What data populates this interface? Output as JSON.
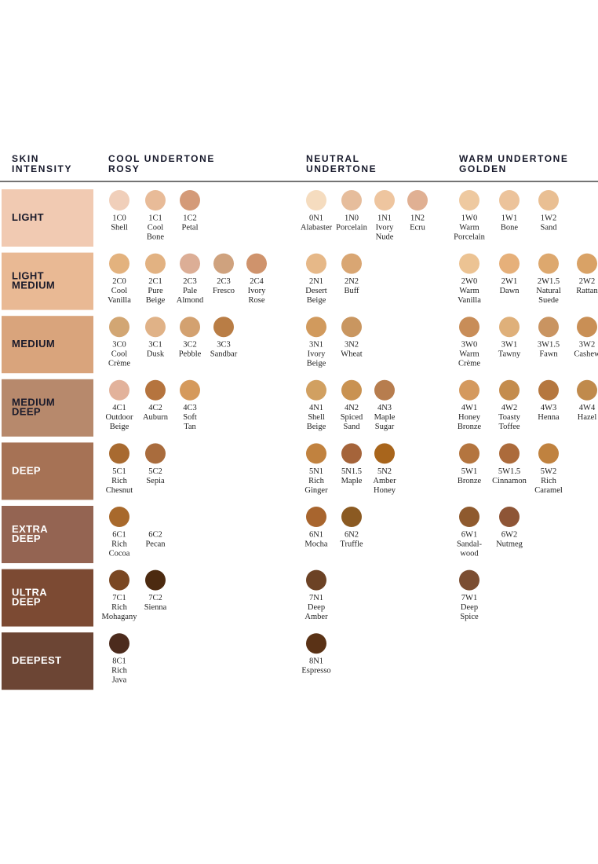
{
  "headers": [
    [
      "SKIN",
      "INTENSITY"
    ],
    [
      "COOL UNDERTONE",
      "ROSY"
    ],
    [
      "NEUTRAL",
      "UNDERTONE"
    ],
    [
      "WARM UNDERTONE",
      "GOLDEN"
    ]
  ],
  "rows": [
    {
      "label": [
        "LIGHT"
      ],
      "box": "#f1cab2",
      "cool": [
        {
          "code": "1C0",
          "name": [
            "Shell"
          ],
          "color": "#f0cfba"
        },
        {
          "code": "1C1",
          "name": [
            "Cool",
            "Bone"
          ],
          "color": "#e8bb98"
        },
        {
          "code": "1C2",
          "name": [
            "Petal"
          ],
          "color": "#d49a78"
        }
      ],
      "neutral": [
        {
          "code": "0N1",
          "name": [
            "Alabaster"
          ],
          "color": "#f5dcbf"
        },
        {
          "code": "1N0",
          "name": [
            "Porcelain"
          ],
          "color": "#e6bd9c"
        },
        {
          "code": "1N1",
          "name": [
            "Ivory",
            "Nude"
          ],
          "color": "#eec59f"
        },
        {
          "code": "1N2",
          "name": [
            "Ecru"
          ],
          "color": "#e0b093"
        }
      ],
      "warm": [
        {
          "code": "1W0",
          "name": [
            "Warm",
            "Porcelain"
          ],
          "color": "#eec9a0"
        },
        {
          "code": "1W1",
          "name": [
            "Bone"
          ],
          "color": "#ecc39b"
        },
        {
          "code": "1W2",
          "name": [
            "Sand"
          ],
          "color": "#e9bf93"
        }
      ]
    },
    {
      "label": [
        "LIGHT",
        "MEDIUM"
      ],
      "box": "#e9b994",
      "cool": [
        {
          "code": "2C0",
          "name": [
            "Cool",
            "Vanilla"
          ],
          "color": "#e3b27e"
        },
        {
          "code": "2C1",
          "name": [
            "Pure",
            "Beige"
          ],
          "color": "#e2b282"
        },
        {
          "code": "2C3",
          "name": [
            "Pale",
            "Almond"
          ],
          "color": "#dcae96"
        },
        {
          "code": "2C3",
          "name": [
            "Fresco"
          ],
          "color": "#cfa27e"
        },
        {
          "code": "2C4",
          "name": [
            "Ivory",
            "Rose"
          ],
          "color": "#cf936c"
        }
      ],
      "neutral": [
        {
          "code": "2N1",
          "name": [
            "Desert",
            "Beige"
          ],
          "color": "#e6b888"
        },
        {
          "code": "2N2",
          "name": [
            "Buff"
          ],
          "color": "#d9a673"
        }
      ],
      "warm": [
        {
          "code": "2W0",
          "name": [
            "Warm",
            "Vanilla"
          ],
          "color": "#ecc393"
        },
        {
          "code": "2W1",
          "name": [
            "Dawn"
          ],
          "color": "#e6b07a"
        },
        {
          "code": "2W1.5",
          "name": [
            "Natural",
            "Suede"
          ],
          "color": "#dda86e"
        },
        {
          "code": "2W2",
          "name": [
            "Rattan"
          ],
          "color": "#d9a266"
        }
      ]
    },
    {
      "label": [
        "MEDIUM"
      ],
      "box": "#d9a47c",
      "cool": [
        {
          "code": "3C0",
          "name": [
            "Cool",
            "Crème"
          ],
          "color": "#d2a673"
        },
        {
          "code": "3C1",
          "name": [
            "Dusk"
          ],
          "color": "#e0b287"
        },
        {
          "code": "3C2",
          "name": [
            "Pebble"
          ],
          "color": "#d3a170"
        },
        {
          "code": "3C3",
          "name": [
            "Sandbar"
          ],
          "color": "#b97d45"
        }
      ],
      "neutral": [
        {
          "code": "3N1",
          "name": [
            "Ivory",
            "Beige"
          ],
          "color": "#d19a5d"
        },
        {
          "code": "3N2",
          "name": [
            "Wheat"
          ],
          "color": "#c99660"
        }
      ],
      "warm": [
        {
          "code": "3W0",
          "name": [
            "Warm",
            "Crème"
          ],
          "color": "#c88d58"
        },
        {
          "code": "3W1",
          "name": [
            "Tawny"
          ],
          "color": "#dfb07a"
        },
        {
          "code": "3W1.5",
          "name": [
            "Fawn"
          ],
          "color": "#c99461"
        },
        {
          "code": "3W2",
          "name": [
            "Cashew"
          ],
          "color": "#c98f55"
        }
      ]
    },
    {
      "label": [
        "MEDIUM",
        "DEEP"
      ],
      "box": "#b7896c",
      "cool": [
        {
          "code": "4C1",
          "name": [
            "Outdoor",
            "Beige"
          ],
          "color": "#e2b29b"
        },
        {
          "code": "4C2",
          "name": [
            "Auburn"
          ],
          "color": "#b5743e"
        },
        {
          "code": "4C3",
          "name": [
            "Soft",
            "Tan"
          ],
          "color": "#d5995b"
        }
      ],
      "neutral": [
        {
          "code": "4N1",
          "name": [
            "Shell",
            "Beige"
          ],
          "color": "#d1a061"
        },
        {
          "code": "4N2",
          "name": [
            "Spiced",
            "Sand"
          ],
          "color": "#c99251"
        },
        {
          "code": "4N3",
          "name": [
            "Maple",
            "Sugar"
          ],
          "color": "#b77d4e"
        }
      ],
      "warm": [
        {
          "code": "4W1",
          "name": [
            "Honey",
            "Bronze"
          ],
          "color": "#d4995e"
        },
        {
          "code": "4W2",
          "name": [
            "Toasty",
            "Toffee"
          ],
          "color": "#c48c4d"
        },
        {
          "code": "4W3",
          "name": [
            "Henna"
          ],
          "color": "#b5773f"
        },
        {
          "code": "4W4",
          "name": [
            "Hazel"
          ],
          "color": "#c08a4c"
        }
      ]
    },
    {
      "label": [
        "DEEP"
      ],
      "box": "#a67255",
      "cool": [
        {
          "code": "5C1",
          "name": [
            "Rich",
            "Chesnut"
          ],
          "color": "#a86a30"
        },
        {
          "code": "5C2",
          "name": [
            "Sepia"
          ],
          "color": "#a96c3d"
        }
      ],
      "neutral": [
        {
          "code": "5N1",
          "name": [
            "Rich",
            "Ginger"
          ],
          "color": "#c1823f"
        },
        {
          "code": "5N1.5",
          "name": [
            "Maple"
          ],
          "color": "#a5643a"
        },
        {
          "code": "5N2",
          "name": [
            "Amber",
            "Honey"
          ],
          "color": "#a8651c"
        }
      ],
      "warm": [
        {
          "code": "5W1",
          "name": [
            "Bronze"
          ],
          "color": "#b4753f"
        },
        {
          "code": "5W1.5",
          "name": [
            "Cinnamon"
          ],
          "color": "#ac6b3b"
        },
        {
          "code": "5W2",
          "name": [
            "Rich",
            "Caramel"
          ],
          "color": "#c0823f"
        }
      ]
    },
    {
      "label": [
        "EXTRA",
        "DEEP"
      ],
      "box": "#946452",
      "cool": [
        {
          "code": "6C1",
          "name": [
            "Rich",
            "Cocoa"
          ],
          "color": "#a8692c"
        },
        {
          "code": "6C2",
          "name": [
            "Pecan"
          ],
          "color": null
        }
      ],
      "neutral": [
        {
          "code": "6N1",
          "name": [
            "Mocha"
          ],
          "color": "#a8652e"
        },
        {
          "code": "6N2",
          "name": [
            "Truffle"
          ],
          "color": "#8b5a22"
        }
      ],
      "warm": [
        {
          "code": "6W1",
          "name": [
            "Sandal-",
            "wood"
          ],
          "color": "#8f5a2e"
        },
        {
          "code": "6W2",
          "name": [
            "Nutmeg"
          ],
          "color": "#8e5536"
        }
      ]
    },
    {
      "label": [
        "ULTRA",
        "DEEP"
      ],
      "box": "#7c4a33",
      "cool": [
        {
          "code": "7C1",
          "name": [
            "Rich",
            "Mohagany"
          ],
          "color": "#7a4722"
        },
        {
          "code": "7C2",
          "name": [
            "Sienna"
          ],
          "color": "#4c2a10"
        }
      ],
      "neutral": [
        {
          "code": "7N1",
          "name": [
            "Deep",
            "Amber"
          ],
          "color": "#6c4225"
        }
      ],
      "warm": [
        {
          "code": "7W1",
          "name": [
            "Deep",
            "Spice"
          ],
          "color": "#7b4e32"
        }
      ]
    },
    {
      "label": [
        "DEEPEST"
      ],
      "box": "#6c4534",
      "cool": [
        {
          "code": "8C1",
          "name": [
            "Rich",
            "Java"
          ],
          "color": "#4c2b1d"
        }
      ],
      "neutral": [
        {
          "code": "8N1",
          "name": [
            "Espresso"
          ],
          "color": "#5a3216"
        }
      ],
      "warm": []
    }
  ]
}
